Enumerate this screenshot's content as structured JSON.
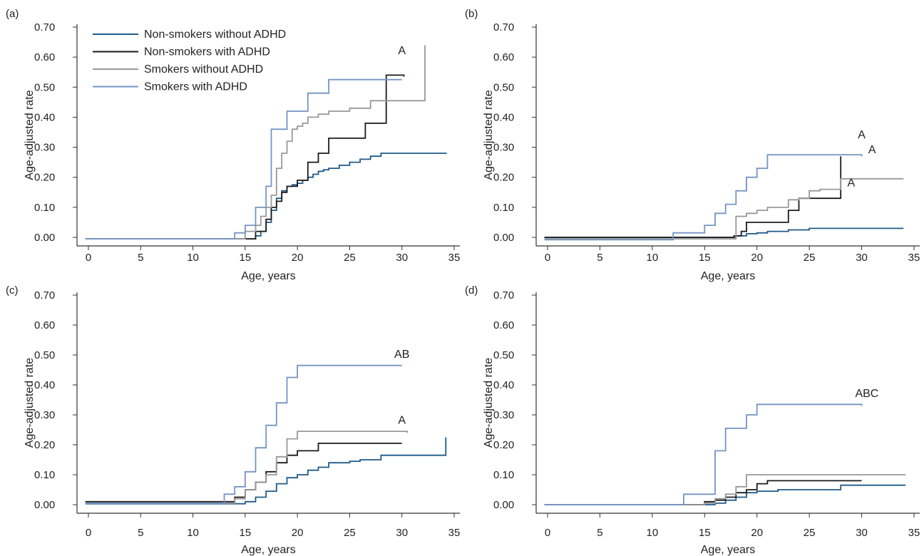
{
  "colors": {
    "non_smokers_without_adhd": "#1f5a8a",
    "non_smokers_with_adhd": "#1a1a1a",
    "smokers_without_adhd": "#999999",
    "smokers_with_adhd": "#7594c4",
    "axis": "#333333",
    "text": "#222222"
  },
  "chart_data": [
    {
      "type": "line",
      "step": true,
      "panel": "(a)",
      "xlabel": "Age, years",
      "ylabel": "Age-adjusted rate",
      "xlim": [
        0,
        35
      ],
      "ylim": [
        0,
        0.7
      ],
      "xticks": [
        "0",
        "5",
        "10",
        "15",
        "20",
        "25",
        "30",
        "35"
      ],
      "yticks": [
        "0.00",
        "0.10",
        "0.20",
        "0.30",
        "0.40",
        "0.50",
        "0.60",
        "0.70"
      ],
      "grid": false,
      "legend": {
        "position": "top-left",
        "entries": [
          "Non-smokers without ADHD",
          "Non-smokers with ADHD",
          "Smokers without ADHD",
          "Smokers with ADHD"
        ]
      },
      "series": [
        {
          "name": "Non-smokers without ADHD",
          "color": "#1f5a8a",
          "x": [
            -0.3,
            16,
            16.5,
            17,
            17.5,
            18,
            18.5,
            19,
            19.5,
            20,
            20.5,
            21,
            21.5,
            22,
            22.5,
            23,
            24,
            25,
            26,
            27,
            28,
            34.3
          ],
          "y": [
            -0.005,
            0.005,
            0.02,
            0.05,
            0.09,
            0.13,
            0.155,
            0.17,
            0.175,
            0.18,
            0.19,
            0.2,
            0.21,
            0.22,
            0.225,
            0.23,
            0.24,
            0.25,
            0.26,
            0.27,
            0.28,
            0.28
          ]
        },
        {
          "name": "Non-smokers with ADHD",
          "color": "#1a1a1a",
          "x": [
            -0.3,
            16,
            17,
            17.5,
            18,
            18.5,
            19,
            19.5,
            20,
            21,
            22,
            23,
            26.5,
            28.5,
            30.2
          ],
          "y": [
            -0.005,
            0.02,
            0.06,
            0.1,
            0.12,
            0.15,
            0.17,
            0.17,
            0.19,
            0.25,
            0.28,
            0.33,
            0.38,
            0.54,
            0.535
          ]
        },
        {
          "name": "Smokers without ADHD",
          "color": "#999999",
          "x": [
            -0.3,
            15,
            16,
            16.5,
            17,
            17.5,
            18,
            18.5,
            19,
            19.5,
            20,
            20.5,
            21,
            22,
            23,
            25,
            27,
            28.5,
            32.2
          ],
          "y": [
            -0.005,
            0.02,
            0.04,
            0.07,
            0.1,
            0.14,
            0.23,
            0.28,
            0.32,
            0.36,
            0.37,
            0.38,
            0.4,
            0.41,
            0.42,
            0.43,
            0.455,
            0.455,
            0.64
          ]
        },
        {
          "name": "Smokers with ADHD",
          "color": "#7594c4",
          "x": [
            -0.3,
            14,
            15,
            16,
            17,
            17.5,
            18,
            19,
            20,
            21,
            22,
            23,
            25,
            30
          ],
          "y": [
            -0.005,
            0.015,
            0.04,
            0.1,
            0.17,
            0.36,
            0.36,
            0.42,
            0.42,
            0.48,
            0.48,
            0.525,
            0.525,
            0.525
          ]
        }
      ],
      "annotations": [
        {
          "text": "A",
          "x": 30,
          "y": 0.61
        }
      ]
    },
    {
      "type": "line",
      "step": true,
      "panel": "(b)",
      "xlabel": "Age, years",
      "ylabel": "Age-adjusted rate",
      "xlim": [
        0,
        35
      ],
      "ylim": [
        0,
        0.7
      ],
      "xticks": [
        "0",
        "5",
        "10",
        "15",
        "20",
        "25",
        "30",
        "35"
      ],
      "yticks": [
        "0.00",
        "0.10",
        "0.20",
        "0.30",
        "0.40",
        "0.50",
        "0.60",
        "0.70"
      ],
      "grid": false,
      "series": [
        {
          "name": "Non-smokers without ADHD",
          "color": "#1f5a8a",
          "x": [
            -0.3,
            18,
            19,
            20,
            21,
            23,
            25,
            34
          ],
          "y": [
            0.0,
            0.005,
            0.012,
            0.015,
            0.02,
            0.025,
            0.03,
            0.03
          ]
        },
        {
          "name": "Non-smokers with ADHD",
          "color": "#1a1a1a",
          "x": [
            -0.3,
            17.8,
            18.5,
            19,
            20,
            23,
            24,
            26,
            28,
            28
          ],
          "y": [
            0.0,
            0.005,
            0.02,
            0.05,
            0.05,
            0.09,
            0.13,
            0.13,
            0.27,
            0.27
          ]
        },
        {
          "name": "Smokers without ADHD",
          "color": "#999999",
          "x": [
            -0.3,
            18,
            19,
            19.5,
            20,
            21,
            23,
            24,
            25,
            26,
            27,
            28,
            34
          ],
          "y": [
            -0.005,
            0.07,
            0.08,
            0.08,
            0.09,
            0.1,
            0.125,
            0.13,
            0.155,
            0.16,
            0.16,
            0.195,
            0.195
          ]
        },
        {
          "name": "Smokers with ADHD",
          "color": "#7594c4",
          "x": [
            -0.3,
            12,
            14,
            15,
            16,
            17,
            18,
            19,
            20,
            21,
            22,
            30
          ],
          "y": [
            -0.008,
            0.015,
            0.015,
            0.04,
            0.08,
            0.11,
            0.155,
            0.2,
            0.23,
            0.275,
            0.275,
            0.27
          ]
        }
      ],
      "annotations": [
        {
          "text": "A",
          "x": 30,
          "y": 0.33
        },
        {
          "text": "A",
          "x": 31,
          "y": 0.28
        },
        {
          "text": "A",
          "x": 29,
          "y": 0.17
        }
      ]
    },
    {
      "type": "line",
      "step": true,
      "panel": "(c)",
      "xlabel": "Age, years",
      "ylabel": "Age-adjusted rate",
      "xlim": [
        0,
        35
      ],
      "ylim": [
        0,
        0.7
      ],
      "xticks": [
        "0",
        "5",
        "10",
        "15",
        "20",
        "25",
        "30",
        "35"
      ],
      "yticks": [
        "0.00",
        "0.10",
        "0.20",
        "0.30",
        "0.40",
        "0.50",
        "0.60",
        "0.70"
      ],
      "grid": false,
      "series": [
        {
          "name": "Non-smokers without ADHD",
          "color": "#1f5a8a",
          "x": [
            -0.3,
            15,
            16,
            17,
            18,
            19,
            20,
            21,
            22,
            23,
            24,
            25,
            26,
            28,
            30,
            34.2,
            34.2
          ],
          "y": [
            0.003,
            0.01,
            0.025,
            0.045,
            0.07,
            0.09,
            0.1,
            0.115,
            0.125,
            0.14,
            0.14,
            0.145,
            0.15,
            0.165,
            0.165,
            0.165,
            0.225
          ]
        },
        {
          "name": "Non-smokers with ADHD",
          "color": "#1a1a1a",
          "x": [
            -0.3,
            14,
            15,
            16,
            17,
            18,
            19,
            20,
            22,
            30
          ],
          "y": [
            0.01,
            0.025,
            0.05,
            0.075,
            0.11,
            0.14,
            0.165,
            0.18,
            0.205,
            0.205
          ]
        },
        {
          "name": "Smokers without ADHD",
          "color": "#999999",
          "x": [
            -0.3,
            14,
            15,
            16,
            17,
            18,
            19,
            20,
            30.5
          ],
          "y": [
            0.005,
            0.02,
            0.05,
            0.075,
            0.1,
            0.16,
            0.22,
            0.245,
            0.24
          ]
        },
        {
          "name": "Smokers with ADHD",
          "color": "#7594c4",
          "x": [
            -0.3,
            13,
            14,
            15,
            16,
            17,
            18,
            19,
            20,
            30
          ],
          "y": [
            0.005,
            0.035,
            0.06,
            0.11,
            0.19,
            0.265,
            0.34,
            0.425,
            0.465,
            0.465
          ]
        }
      ],
      "annotations": [
        {
          "text": "AB",
          "x": 30,
          "y": 0.49
        },
        {
          "text": "A",
          "x": 30,
          "y": 0.27
        }
      ]
    },
    {
      "type": "line",
      "step": true,
      "panel": "(d)",
      "xlabel": "Age, years",
      "ylabel": "Age-adjusted rate",
      "xlim": [
        0,
        35
      ],
      "ylim": [
        0,
        0.7
      ],
      "xticks": [
        "0",
        "5",
        "10",
        "15",
        "20",
        "25",
        "30",
        "35"
      ],
      "yticks": [
        "0.00",
        "0.10",
        "0.20",
        "0.30",
        "0.40",
        "0.50",
        "0.60",
        "0.70"
      ],
      "grid": false,
      "series": [
        {
          "name": "Non-smokers without ADHD",
          "color": "#1f5a8a",
          "x": [
            -0.3,
            16,
            17,
            18,
            19,
            20,
            22,
            28,
            34.2
          ],
          "y": [
            0.0,
            0.005,
            0.015,
            0.025,
            0.04,
            0.045,
            0.05,
            0.065,
            0.065
          ]
        },
        {
          "name": "Non-smokers with ADHD",
          "color": "#1a1a1a",
          "x": [
            -0.3,
            15,
            16,
            17,
            18,
            19,
            20,
            21,
            22,
            30
          ],
          "y": [
            0.0,
            0.01,
            0.015,
            0.025,
            0.04,
            0.05,
            0.07,
            0.08,
            0.08,
            0.08
          ]
        },
        {
          "name": "Smokers without ADHD",
          "color": "#999999",
          "x": [
            -0.3,
            15,
            16,
            17,
            18,
            19,
            20,
            34.2
          ],
          "y": [
            0.0,
            0.005,
            0.02,
            0.035,
            0.06,
            0.1,
            0.1,
            0.1
          ]
        },
        {
          "name": "Smokers with ADHD",
          "color": "#7594c4",
          "x": [
            -0.3,
            13,
            16,
            17,
            18,
            19,
            20,
            30
          ],
          "y": [
            0.0,
            0.035,
            0.18,
            0.255,
            0.255,
            0.3,
            0.335,
            0.33
          ]
        }
      ],
      "annotations": [
        {
          "text": "ABC",
          "x": 30.5,
          "y": 0.36
        }
      ]
    }
  ]
}
